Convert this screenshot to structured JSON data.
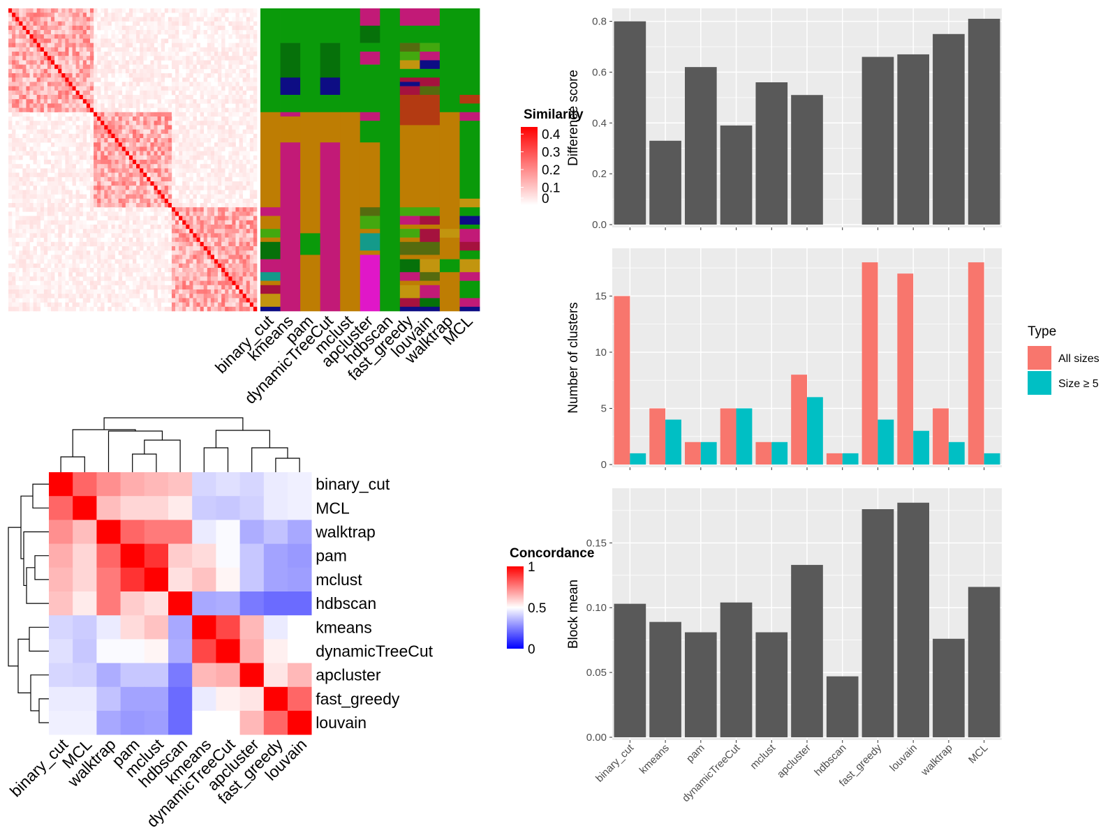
{
  "methods": [
    "binary_cut",
    "kmeans",
    "pam",
    "dynamicTreeCut",
    "mclust",
    "apcluster",
    "hdbscan",
    "fast_greedy",
    "louvain",
    "walktrap",
    "MCL"
  ],
  "colors": {
    "bar": "#595959",
    "all_sizes": "#F8766D",
    "size_ge5": "#00BFC4",
    "panel_bg": "#EBEBEB",
    "grid": "#FFFFFF",
    "heat_high": "#FF0000",
    "heat_mid": "#FFFFFF",
    "heat_low": "#0000FF",
    "cluster_palette": [
      "#0A9A0A",
      "#C21A77",
      "#BE7D03",
      "#06710A",
      "#0D0D84",
      "#A5123E",
      "#E017C8",
      "#149A8A",
      "#43A80F",
      "#B33A12",
      "#556B0F",
      "#C2950F"
    ]
  },
  "similarity_heatmap": {
    "legend_title": "Similarity",
    "legend_ticks": [
      "0.4",
      "0.3",
      "0.2",
      "0.1",
      "0"
    ],
    "legend_values": [
      0.4,
      0.3,
      0.2,
      0.1,
      0
    ],
    "n_terms": 70,
    "blocks": [
      24,
      22,
      24
    ],
    "within_block_level": 0.12,
    "between_level": 0.02,
    "column_labels": [
      "binary_cut",
      "kmeans",
      "pam",
      "dynamicTreeCut",
      "mclust",
      "apcluster",
      "hdbscan",
      "fast_greedy",
      "louvain",
      "walktrap",
      "MCL"
    ]
  },
  "concordance_heatmap": {
    "legend_title": "Concordance",
    "legend_ticks": [
      "1",
      "0.5",
      "0"
    ],
    "legend_values": [
      1,
      0.5,
      0
    ],
    "order": [
      "binary_cut",
      "MCL",
      "walktrap",
      "pam",
      "mclust",
      "hdbscan",
      "kmeans",
      "dynamicTreeCut",
      "apcluster",
      "fast_greedy",
      "louvain"
    ],
    "matrix": [
      [
        1.0,
        0.8,
        0.72,
        0.66,
        0.64,
        0.62,
        0.42,
        0.44,
        0.42,
        0.46,
        0.47
      ],
      [
        0.8,
        1.0,
        0.63,
        0.58,
        0.58,
        0.54,
        0.4,
        0.39,
        0.41,
        0.46,
        0.47
      ],
      [
        0.72,
        0.63,
        1.0,
        0.8,
        0.76,
        0.76,
        0.46,
        0.49,
        0.34,
        0.38,
        0.33
      ],
      [
        0.66,
        0.58,
        0.8,
        1.0,
        0.9,
        0.6,
        0.57,
        0.49,
        0.39,
        0.32,
        0.3
      ],
      [
        0.64,
        0.58,
        0.76,
        0.9,
        1.0,
        0.56,
        0.62,
        0.52,
        0.39,
        0.32,
        0.31
      ],
      [
        0.62,
        0.54,
        0.76,
        0.6,
        0.56,
        1.0,
        0.33,
        0.34,
        0.24,
        0.21,
        0.21
      ],
      [
        0.42,
        0.4,
        0.46,
        0.57,
        0.62,
        0.33,
        1.0,
        0.86,
        0.64,
        0.46,
        0.5
      ],
      [
        0.44,
        0.39,
        0.49,
        0.49,
        0.52,
        0.34,
        0.86,
        1.0,
        0.66,
        0.53,
        0.5
      ],
      [
        0.42,
        0.41,
        0.34,
        0.39,
        0.39,
        0.24,
        0.64,
        0.66,
        1.0,
        0.55,
        0.64
      ],
      [
        0.46,
        0.46,
        0.38,
        0.32,
        0.32,
        0.21,
        0.46,
        0.53,
        0.55,
        1.0,
        0.8
      ],
      [
        0.47,
        0.47,
        0.33,
        0.3,
        0.31,
        0.21,
        0.5,
        0.5,
        0.64,
        0.8,
        1.0
      ]
    ]
  },
  "chart_data": [
    {
      "type": "bar",
      "categories": [
        "binary_cut",
        "kmeans",
        "pam",
        "dynamicTreeCut",
        "mclust",
        "apcluster",
        "hdbscan",
        "fast_greedy",
        "louvain",
        "walktrap",
        "MCL"
      ],
      "values": [
        0.8,
        0.33,
        0.62,
        0.39,
        0.56,
        0.51,
        0,
        0.66,
        0.67,
        0.75,
        0.81
      ],
      "xlabel": "",
      "ylabel": "Difference score",
      "ylim": [
        0,
        0.84
      ],
      "yticks": [
        "0.0",
        "0.2",
        "0.4",
        "0.6",
        "0.8"
      ],
      "ytick_values": [
        0,
        0.2,
        0.4,
        0.6,
        0.8
      ]
    },
    {
      "type": "bar",
      "categories": [
        "binary_cut",
        "kmeans",
        "pam",
        "dynamicTreeCut",
        "mclust",
        "apcluster",
        "hdbscan",
        "fast_greedy",
        "louvain",
        "walktrap",
        "MCL"
      ],
      "series": [
        {
          "name": "All sizes",
          "values": [
            15,
            5,
            2,
            5,
            2,
            8,
            1,
            18,
            17,
            5,
            18
          ]
        },
        {
          "name": "Size ≥ 5",
          "values": [
            1,
            4,
            2,
            5,
            2,
            6,
            1,
            4,
            3,
            2,
            1
          ]
        }
      ],
      "xlabel": "",
      "ylabel": "Number of clusters",
      "ylim": [
        0,
        19
      ],
      "yticks": [
        "0",
        "5",
        "10",
        "15"
      ],
      "ytick_values": [
        0,
        5,
        10,
        15
      ],
      "legend": {
        "title": "Type",
        "placement": "right"
      }
    },
    {
      "type": "bar",
      "categories": [
        "binary_cut",
        "kmeans",
        "pam",
        "dynamicTreeCut",
        "mclust",
        "apcluster",
        "hdbscan",
        "fast_greedy",
        "louvain",
        "walktrap",
        "MCL"
      ],
      "values": [
        0.103,
        0.089,
        0.081,
        0.104,
        0.081,
        0.133,
        0.047,
        0.176,
        0.181,
        0.076,
        0.116
      ],
      "xlabel": "",
      "ylabel": "Block mean",
      "ylim": [
        0,
        0.19
      ],
      "yticks": [
        "0.00",
        "0.05",
        "0.10",
        "0.15"
      ],
      "ytick_values": [
        0,
        0.05,
        0.1,
        0.15
      ]
    }
  ]
}
